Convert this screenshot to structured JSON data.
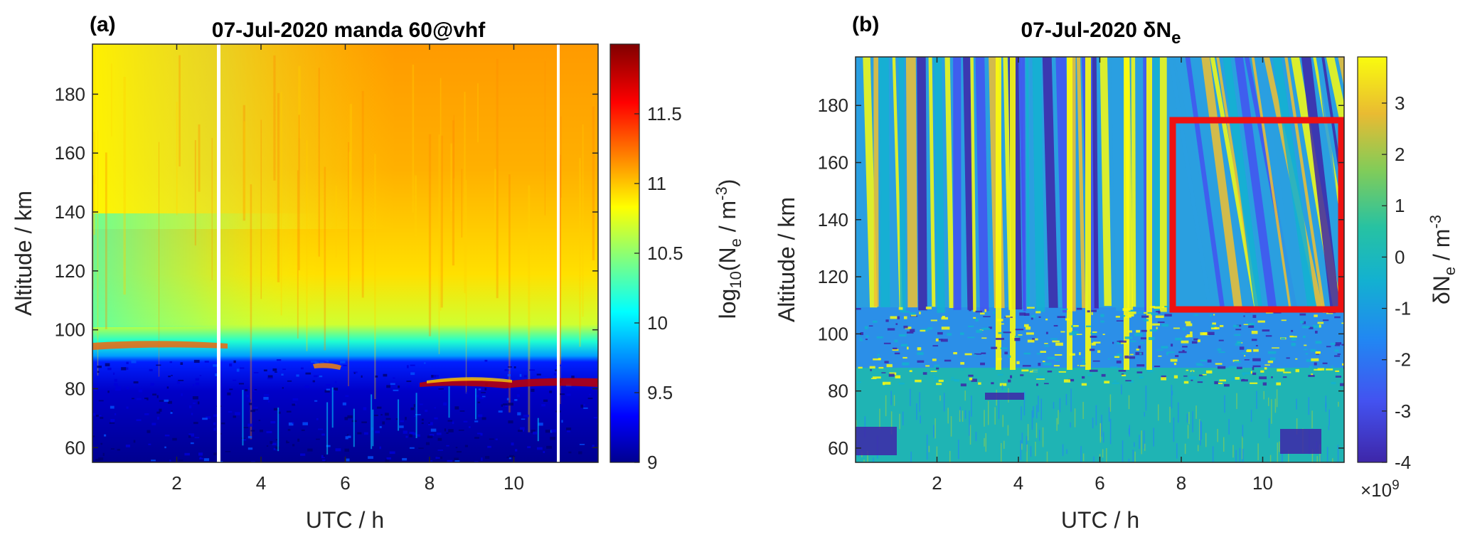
{
  "chart_data": [
    {
      "type": "heatmap",
      "panel_label": "(a)",
      "title": "07-Jul-2020 manda 60@vhf",
      "xlabel": "UTC / h",
      "ylabel": "Altitude / km",
      "xlim": [
        0,
        12
      ],
      "ylim": [
        55,
        197
      ],
      "xticks": [
        2,
        4,
        6,
        8,
        10
      ],
      "yticks": [
        60,
        80,
        100,
        120,
        140,
        160,
        180
      ],
      "colorbar": {
        "label_parts": [
          "log",
          "10",
          "(N",
          "e",
          " / m",
          "-3",
          ")"
        ],
        "range": [
          9,
          12
        ],
        "ticks": [
          9,
          9.5,
          10,
          10.5,
          11,
          11.5
        ],
        "colormap": "jet"
      },
      "data_gaps_utc": [
        3.05,
        10.95
      ],
      "features": [
        {
          "name": "sporadic E layer",
          "utc": [
            7.5,
            12
          ],
          "altitude_km": [
            82,
            86
          ],
          "value_log10": 12
        },
        {
          "name": "lower edge enhancement",
          "utc": [
            0,
            3
          ],
          "altitude_km": [
            94,
            98
          ],
          "value_log10": 11.2
        }
      ]
    },
    {
      "type": "heatmap",
      "panel_label": "(b)",
      "title_main": "07-Jul-2020 δN",
      "title_sub": "e",
      "xlabel": "UTC / h",
      "ylabel": "Altitude / km",
      "xlim": [
        0,
        12
      ],
      "ylim": [
        55,
        197
      ],
      "xticks": [
        2,
        4,
        6,
        8,
        10
      ],
      "yticks": [
        60,
        80,
        100,
        120,
        140,
        160,
        180
      ],
      "colorbar": {
        "label_parts": [
          "δN",
          "e",
          " / m",
          "-3"
        ],
        "range": [
          -4,
          3.9
        ],
        "ticks": [
          -4,
          -3,
          -2,
          -1,
          0,
          1,
          2,
          3
        ],
        "multiplier_base": "×10",
        "multiplier_exp": "9",
        "colormap": "parula"
      },
      "highlight_box": {
        "utc": [
          7.8,
          12
        ],
        "altitude_km": [
          109,
          175
        ],
        "color": "#ee1111"
      }
    }
  ]
}
